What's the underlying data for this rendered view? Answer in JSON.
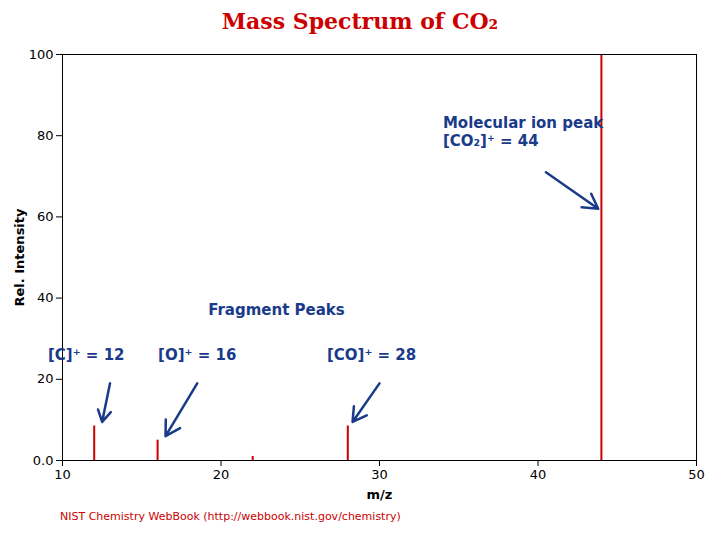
{
  "chart_data": {
    "type": "stem",
    "title": "Mass Spectrum of CO₂",
    "title_color": "#cc0000",
    "xlabel": "m/z",
    "ylabel": "Rel. Intensity",
    "x": [
      12,
      16,
      22,
      28,
      44
    ],
    "values": [
      8.5,
      5.0,
      1.0,
      8.5,
      100.0
    ],
    "color": "#cc0000",
    "xlim": [
      10,
      50
    ],
    "ylim": [
      0,
      100
    ],
    "xticks": [
      10,
      20,
      30,
      40,
      50
    ],
    "yticks": [
      {
        "value": 0,
        "label": "0.0"
      },
      20,
      40,
      60,
      80,
      100
    ],
    "grid": false,
    "annotations": [
      {
        "text": "Molecular ion peak\n[CO₂]⁺ = 44",
        "x": 34.0,
        "y": 85,
        "arrow_from": [
          40.5,
          71
        ],
        "arrow_to": [
          43.8,
          62
        ],
        "color": "#1a3a8a"
      },
      {
        "text": "Fragment Peaks",
        "x": 23.5,
        "y": 37,
        "color": "#1a3a8a"
      },
      {
        "text": "[C]⁺ = 12",
        "x": 11.5,
        "y": 26,
        "arrow_from": [
          13.0,
          19
        ],
        "arrow_to": [
          12.5,
          9.5
        ],
        "color": "#1a3a8a"
      },
      {
        "text": "[O]⁺ = 16",
        "x": 18.5,
        "y": 26,
        "arrow_from": [
          18.5,
          19
        ],
        "arrow_to": [
          16.5,
          6.0
        ],
        "color": "#1a3a8a"
      },
      {
        "text": "[CO]⁺ = 28",
        "x": 29.5,
        "y": 26,
        "arrow_from": [
          30.0,
          19
        ],
        "arrow_to": [
          28.3,
          9.5
        ],
        "color": "#1a3a8a"
      }
    ],
    "caption": "NIST Chemistry WebBook (http://webbook.nist.gov/chemistry)",
    "caption_color": "#cc0000"
  }
}
